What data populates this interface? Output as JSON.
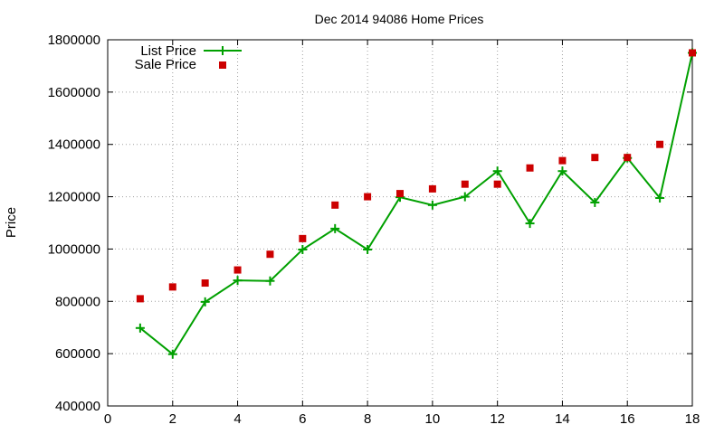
{
  "chart_data": {
    "type": "line",
    "title": "Dec 2014 94086 Home Prices",
    "xlabel": "",
    "ylabel": "Price",
    "xlim": [
      0,
      18
    ],
    "ylim": [
      400000,
      1800000
    ],
    "xticks": [
      0,
      2,
      4,
      6,
      8,
      10,
      12,
      14,
      16,
      18
    ],
    "yticks": [
      400000,
      600000,
      800000,
      1000000,
      1200000,
      1400000,
      1600000,
      1800000
    ],
    "grid": true,
    "legend_position": "top-left",
    "series": [
      {
        "name": "List Price",
        "style": "line-with-plus-markers",
        "color": "#00a000",
        "x": [
          1,
          2,
          3,
          4,
          5,
          6,
          7,
          8,
          9,
          10,
          11,
          12,
          13,
          14,
          15,
          16,
          17,
          18
        ],
        "values": [
          698000,
          598000,
          798000,
          880000,
          878000,
          998000,
          1078000,
          998000,
          1198000,
          1168000,
          1200000,
          1298000,
          1098000,
          1298000,
          1178000,
          1348000,
          1195000,
          1750000
        ]
      },
      {
        "name": "Sale Price",
        "style": "square-markers",
        "color": "#cc0000",
        "x": [
          1,
          2,
          3,
          4,
          5,
          6,
          7,
          8,
          9,
          10,
          11,
          12,
          13,
          14,
          15,
          16,
          17,
          18
        ],
        "values": [
          810000,
          855000,
          870000,
          920000,
          980000,
          1040000,
          1168000,
          1200000,
          1212000,
          1230000,
          1248000,
          1248000,
          1310000,
          1338000,
          1350000,
          1350000,
          1400000,
          1750000
        ]
      }
    ]
  }
}
